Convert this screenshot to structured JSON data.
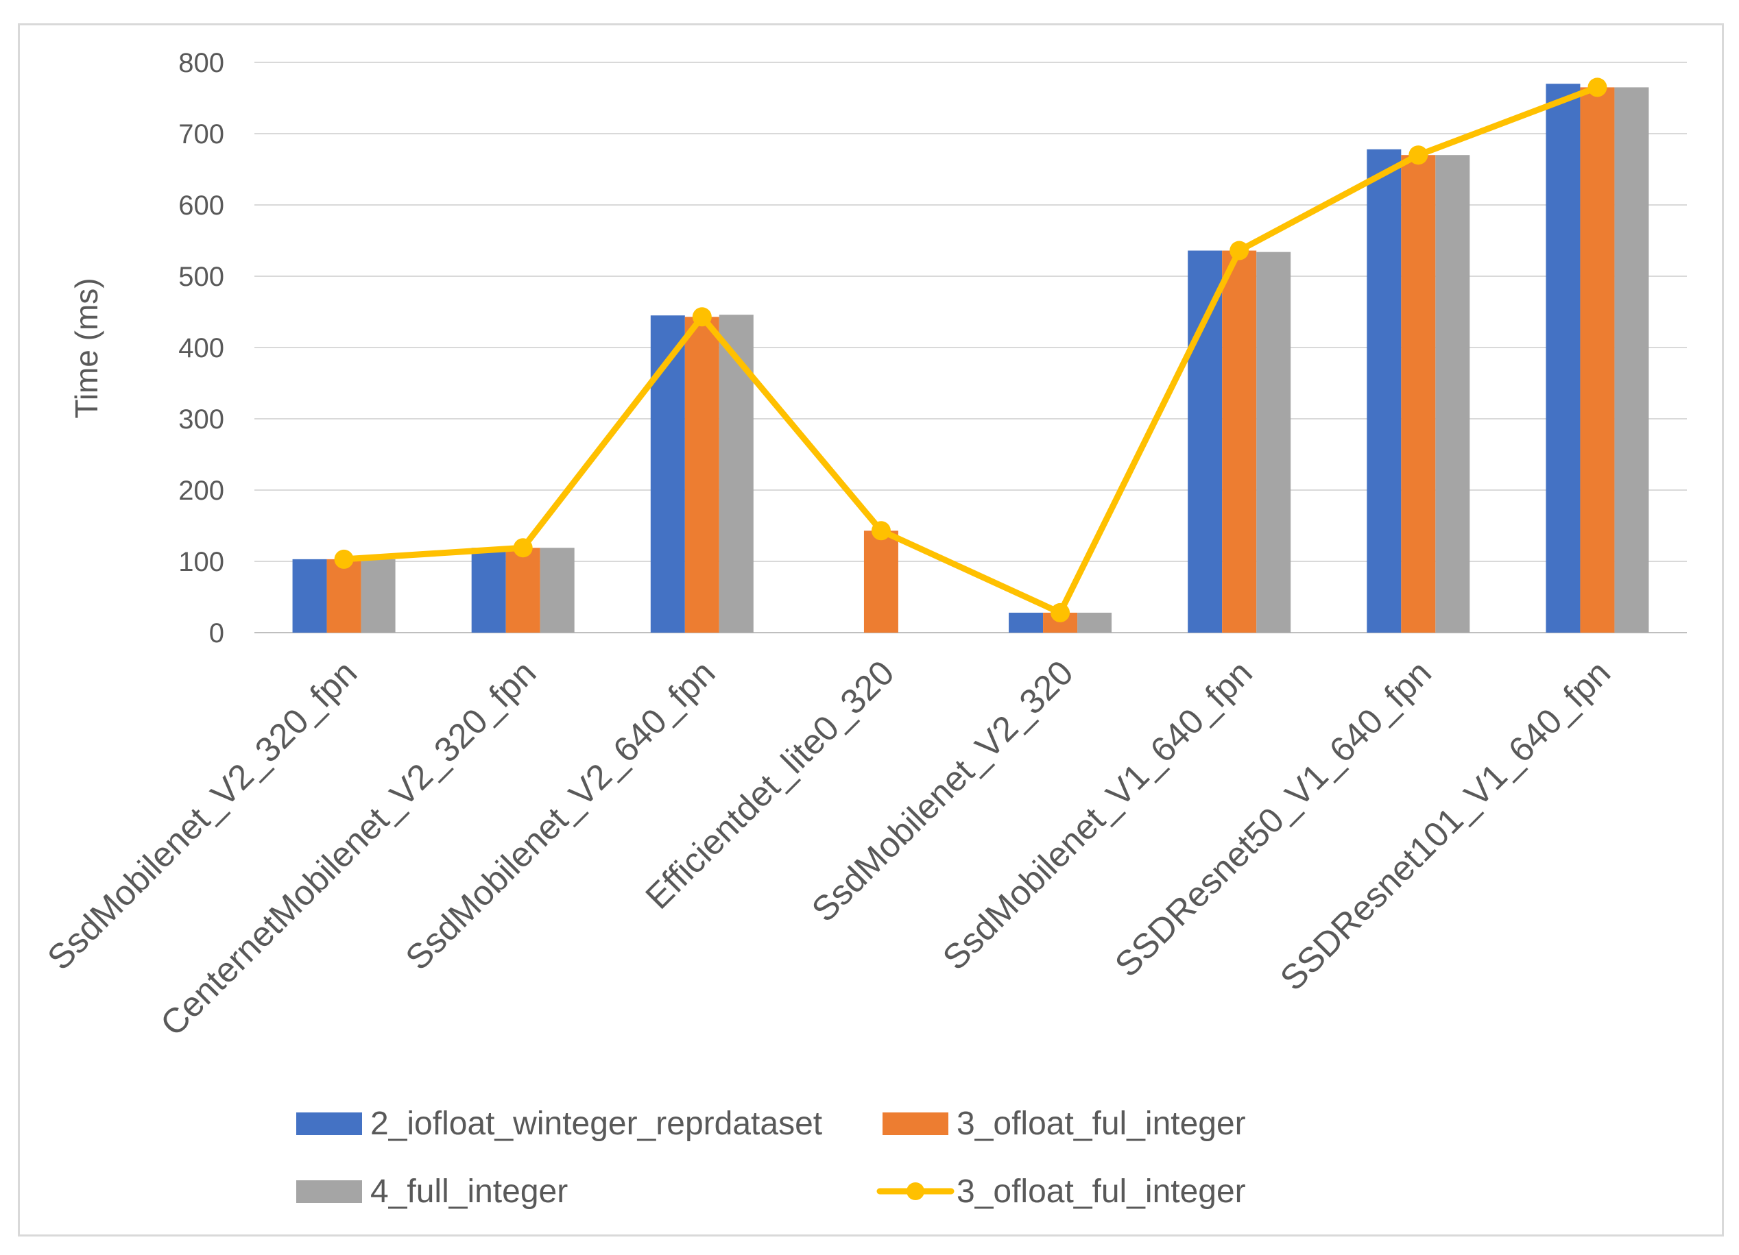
{
  "chart_data": {
    "type": "bar",
    "title": "",
    "xlabel": "",
    "ylabel": "Time (ms)",
    "ylim": [
      0,
      800
    ],
    "yticks": [
      0,
      100,
      200,
      300,
      400,
      500,
      600,
      700,
      800
    ],
    "grid": true,
    "categories": [
      "SsdMobilenet_V2_320_fpn",
      "CenternetMobilenet_V2_320_fpn",
      "SsdMobilenet_V2_640_fpn",
      "Efficientdet_lite0_320",
      "SsdMobilenet_V2_320",
      "SsdMobilenet_V1_640_fpn",
      "SSDResnet50_V1_640_fpn",
      "SSDResnet101_V1_640_fpn"
    ],
    "series": [
      {
        "name": "2_iofloat_winteger_reprdataset",
        "type": "bar",
        "color": "#4472C4",
        "values": [
          103,
          119,
          445,
          0,
          28,
          536,
          678,
          770
        ]
      },
      {
        "name": "3_ofloat_ful_integer",
        "type": "bar",
        "color": "#ED7D31",
        "values": [
          103,
          119,
          443,
          143,
          28,
          536,
          670,
          765
        ]
      },
      {
        "name": "4_full_integer",
        "type": "bar",
        "color": "#A5A5A5",
        "values": [
          103,
          119,
          446,
          0,
          28,
          534,
          670,
          765
        ]
      },
      {
        "name": "3_ofloat_ful_integer",
        "type": "line",
        "color": "#FFC000",
        "values": [
          103,
          119,
          443,
          143,
          28,
          536,
          670,
          765
        ]
      }
    ],
    "legend_position": "bottom"
  }
}
